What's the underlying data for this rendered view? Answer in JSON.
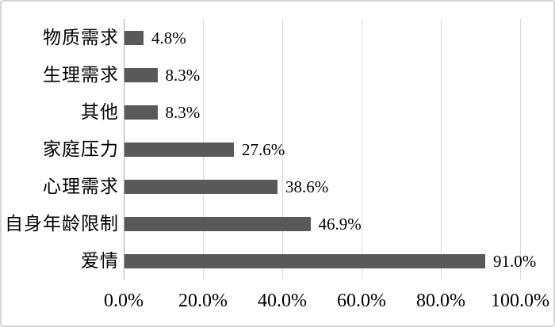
{
  "chart_data": {
    "type": "bar",
    "orientation": "horizontal",
    "title": "",
    "xlabel": "",
    "ylabel": "",
    "categories": [
      "物质需求",
      "生理需求",
      "其他",
      "家庭压力",
      "心理需求",
      "自身年龄限制",
      "爱情"
    ],
    "values": [
      4.8,
      8.3,
      8.3,
      27.6,
      38.6,
      46.9,
      91.0
    ],
    "value_labels": [
      "4.8%",
      "8.3%",
      "8.3%",
      "27.6%",
      "38.6%",
      "46.9%",
      "91.0%"
    ],
    "x_tick_labels": [
      "0.0%",
      "20.0%",
      "40.0%",
      "60.0%",
      "80.0%",
      "100.0%"
    ],
    "x_tick_values": [
      0,
      20,
      40,
      60,
      80,
      100
    ],
    "xlim": [
      0,
      100
    ],
    "grid": true,
    "legend": false,
    "colors": {
      "bar": "#595959",
      "gridline": "#d9d9d9",
      "axis_line": "#ababab",
      "text": "#000000",
      "background": "#ffffff",
      "frame_border": "#d4d4d4"
    }
  }
}
